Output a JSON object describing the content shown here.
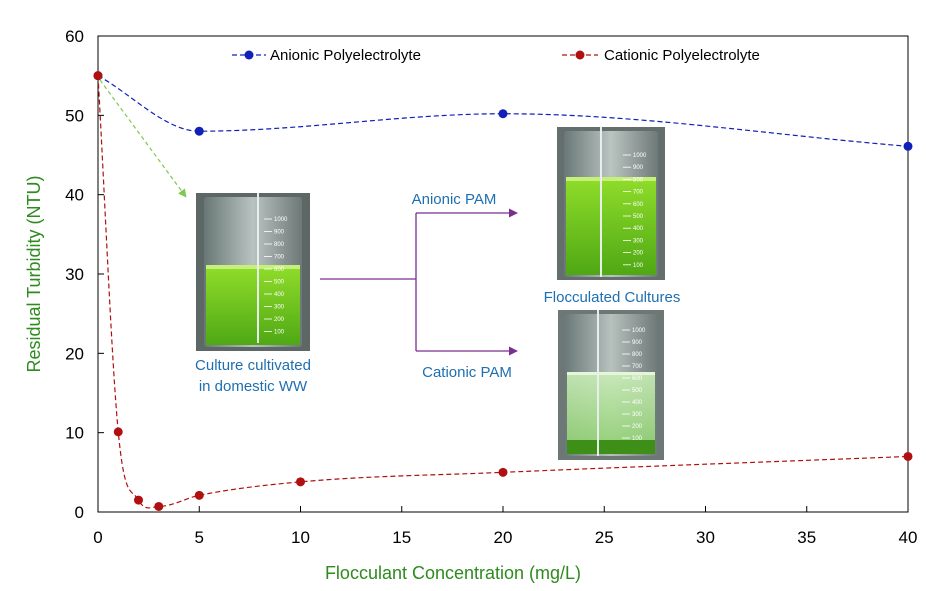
{
  "chart_data": {
    "type": "line",
    "title": "",
    "xlabel": "Flocculant Concentration (mg/L)",
    "ylabel": "Residual Turbidity (NTU)",
    "xlim": [
      0,
      40
    ],
    "ylim": [
      0,
      60
    ],
    "xticks": [
      0,
      5,
      10,
      15,
      20,
      25,
      30,
      35,
      40
    ],
    "yticks": [
      0,
      10,
      20,
      30,
      40,
      50,
      60
    ],
    "grid": false,
    "legend_position": "top",
    "series": [
      {
        "name": "Anionic Polyelectrolyte",
        "color": "#1020b8",
        "line_style": "dashed-smooth",
        "x": [
          0,
          5,
          20,
          40
        ],
        "y": [
          55,
          48,
          50.2,
          46.1
        ]
      },
      {
        "name": "Cationic Polyelectrolyte",
        "color": "#b01010",
        "line_style": "dashed-smooth",
        "x": [
          0,
          1,
          2,
          3,
          5,
          10,
          20,
          40
        ],
        "y": [
          55,
          10.1,
          1.5,
          0.7,
          2.1,
          3.8,
          5.0,
          7.0
        ]
      }
    ],
    "annotations": {
      "culture_label": [
        "Culture cultivated",
        "in domestic WW"
      ],
      "anionic_label": "Anionic PAM",
      "cationic_label": "Cationic PAM",
      "flocculated_label": "Flocculated Cultures",
      "arrow_color": "#7a2e8e",
      "pointer_color": "#7ec850",
      "beaker_scale": [
        "1000",
        "900",
        "800",
        "700",
        "600",
        "500",
        "400",
        "300",
        "200",
        "100"
      ]
    }
  }
}
